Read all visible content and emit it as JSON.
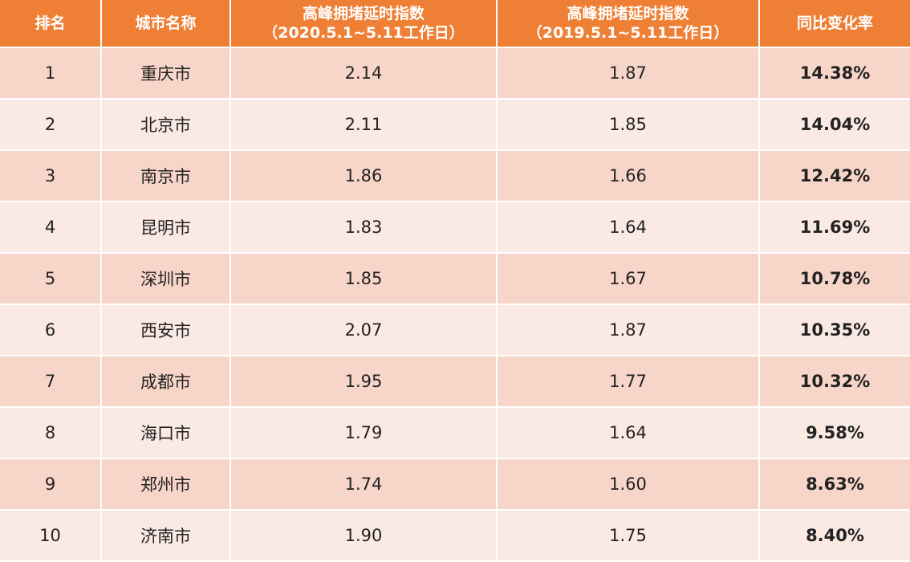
{
  "table": {
    "header": [
      [
        "排名"
      ],
      [
        "城市名称"
      ],
      [
        "高峰拥堵延时指数",
        "（2020.5.1~5.11工作日）"
      ],
      [
        "高峰拥堵延时指数",
        "（2019.5.1~5.11工作日）"
      ],
      [
        "同比变化率"
      ]
    ],
    "rows": [
      [
        "1",
        "重庆市",
        "2.14",
        "1.87",
        "14.38%"
      ],
      [
        "2",
        "北京市",
        "2.11",
        "1.85",
        "14.04%"
      ],
      [
        "3",
        "南京市",
        "1.86",
        "1.66",
        "12.42%"
      ],
      [
        "4",
        "昆明市",
        "1.83",
        "1.64",
        "11.69%"
      ],
      [
        "5",
        "深圳市",
        "1.85",
        "1.67",
        "10.78%"
      ],
      [
        "6",
        "西安市",
        "2.07",
        "1.87",
        "10.35%"
      ],
      [
        "7",
        "成都市",
        "1.95",
        "1.77",
        "10.32%"
      ],
      [
        "8",
        "海口市",
        "1.79",
        "1.64",
        "9.58%"
      ],
      [
        "9",
        "郑州市",
        "1.74",
        "1.60",
        "8.63%"
      ],
      [
        "10",
        "济南市",
        "1.90",
        "1.75",
        "8.40%"
      ]
    ]
  }
}
